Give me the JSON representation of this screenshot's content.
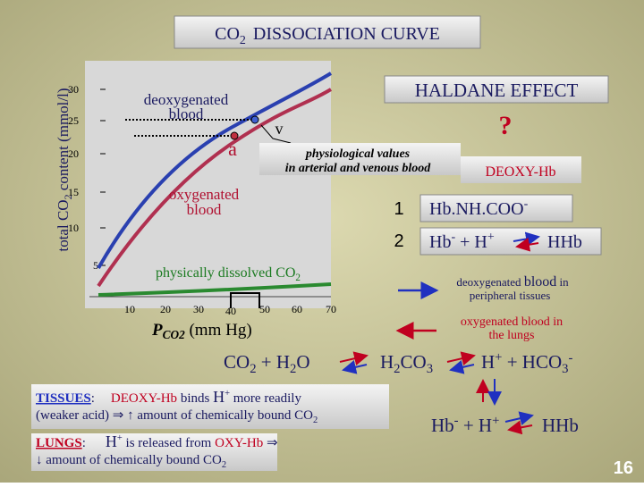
{
  "title": [
    "CO",
    "2",
    "DISSOCIATION CURVE"
  ],
  "y_label": [
    "total CO",
    "2",
    " content (mmol/l)"
  ],
  "yticks": [
    "30",
    "25",
    "20",
    "15",
    "10",
    "5"
  ],
  "xticks": [
    "10",
    "20",
    "30",
    "40",
    "50",
    "60",
    "70"
  ],
  "x_label": [
    "P",
    "CO2",
    " (mm Hg)"
  ],
  "deoxygenated": [
    "deoxygenated",
    "blood"
  ],
  "oxygenated": [
    "oxygenated",
    "blood"
  ],
  "point_a": "a",
  "point_v": "v",
  "dissolved": [
    "physically dissolved CO",
    "2"
  ],
  "physiological": [
    "physiological  values",
    "in arterial and venous blood"
  ],
  "haldane": "HALDANE EFFECT",
  "question": "?",
  "deoxy_hb": "DEOXY-Hb",
  "reaction1": {
    "number": "1",
    "text": [
      "Hb.NH.COO",
      "-"
    ]
  },
  "reaction2": {
    "number": "2",
    "text": [
      "Hb",
      "-",
      " + H",
      "+",
      "HHb"
    ]
  },
  "legend_blue": [
    "deoxygenated ",
    "blood",
    " in",
    "peripheral tissues"
  ],
  "legend_red": [
    "oxygenated blood in",
    "the  lungs"
  ],
  "equation": [
    "CO",
    "2",
    " + H",
    "2",
    "O",
    "H",
    "2",
    "CO",
    "3",
    "H",
    "+",
    " + HCO",
    "3",
    "-"
  ],
  "tissues": [
    "TISSUES",
    ":",
    "DEOXY-Hb",
    " binds ",
    "H",
    "+",
    " more readily",
    "(weaker acid) ⇒ ↑ amount of chemically bound CO",
    "2"
  ],
  "lungs": [
    "LUNGS",
    ":",
    "H",
    "+",
    " is released from ",
    "OXY-Hb",
    " ⇒",
    "↓ amount of chemically bound CO",
    "2"
  ],
  "bottom_reaction": [
    "Hb",
    "-",
    " + H",
    "+",
    "HHb"
  ],
  "page_number": "16"
}
